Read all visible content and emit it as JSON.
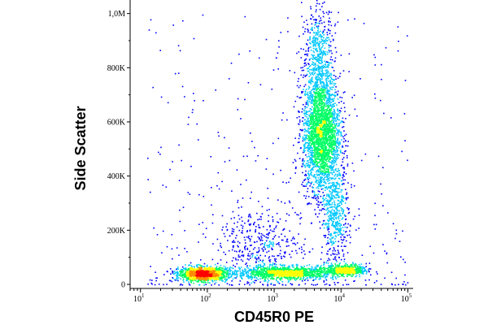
{
  "chart_data": {
    "type": "scatter",
    "subtype": "flow-cytometry-density-plot",
    "title": "",
    "xlabel": "CD45R0 PE",
    "ylabel": "Side Scatter",
    "x_scale": "log",
    "x_range": [
      7,
      120000
    ],
    "y_scale": "linear",
    "y_range": [
      -15000,
      1050000
    ],
    "x_ticks": [
      {
        "value": 10,
        "base": "10",
        "exp": "1"
      },
      {
        "value": 100,
        "base": "10",
        "exp": "2"
      },
      {
        "value": 1000,
        "base": "10",
        "exp": "3"
      },
      {
        "value": 10000,
        "base": "10",
        "exp": "4"
      },
      {
        "value": 100000,
        "base": "10",
        "exp": "5"
      }
    ],
    "y_ticks": [
      {
        "value": 0,
        "label": "0"
      },
      {
        "value": 200000,
        "label": "200K"
      },
      {
        "value": 400000,
        "label": "400K"
      },
      {
        "value": 600000,
        "label": "600K"
      },
      {
        "value": 800000,
        "label": "800K"
      },
      {
        "value": 1000000,
        "label": "1,0M"
      }
    ],
    "grid": false,
    "legend": "none",
    "density_colormap": [
      "#0000ff",
      "#00c8ff",
      "#00ff64",
      "#ffff00",
      "#ff8c00",
      "#ff0000"
    ],
    "populations": [
      {
        "x_center": 85,
        "x_log_sd": 0.18,
        "y_center": 40000,
        "y_sd": 12000,
        "count": 1500,
        "peak_density": "highest"
      },
      {
        "x_center": 1500,
        "x_log_sd": 0.38,
        "y_center": 45000,
        "y_sd": 12000,
        "count": 1200,
        "peak_density": "medium"
      },
      {
        "x_center": 12000,
        "x_log_sd": 0.15,
        "y_center": 55000,
        "y_sd": 10000,
        "count": 500,
        "peak_density": "medium"
      },
      {
        "x_center": 5000,
        "x_log_sd": 0.14,
        "y_center": 560000,
        "y_sd": 110000,
        "count": 2600,
        "peak_density": "high"
      },
      {
        "x_center": 4500,
        "x_log_sd": 0.12,
        "y_center": 850000,
        "y_sd": 90000,
        "count": 500,
        "peak_density": "low"
      },
      {
        "x_center": 8000,
        "x_log_sd": 0.1,
        "y_center": 250000,
        "y_sd": 90000,
        "count": 500,
        "peak_density": "low"
      },
      {
        "x_center": 600,
        "x_log_sd": 0.3,
        "y_center": 140000,
        "y_sd": 70000,
        "count": 400,
        "peak_density": "low"
      }
    ]
  }
}
